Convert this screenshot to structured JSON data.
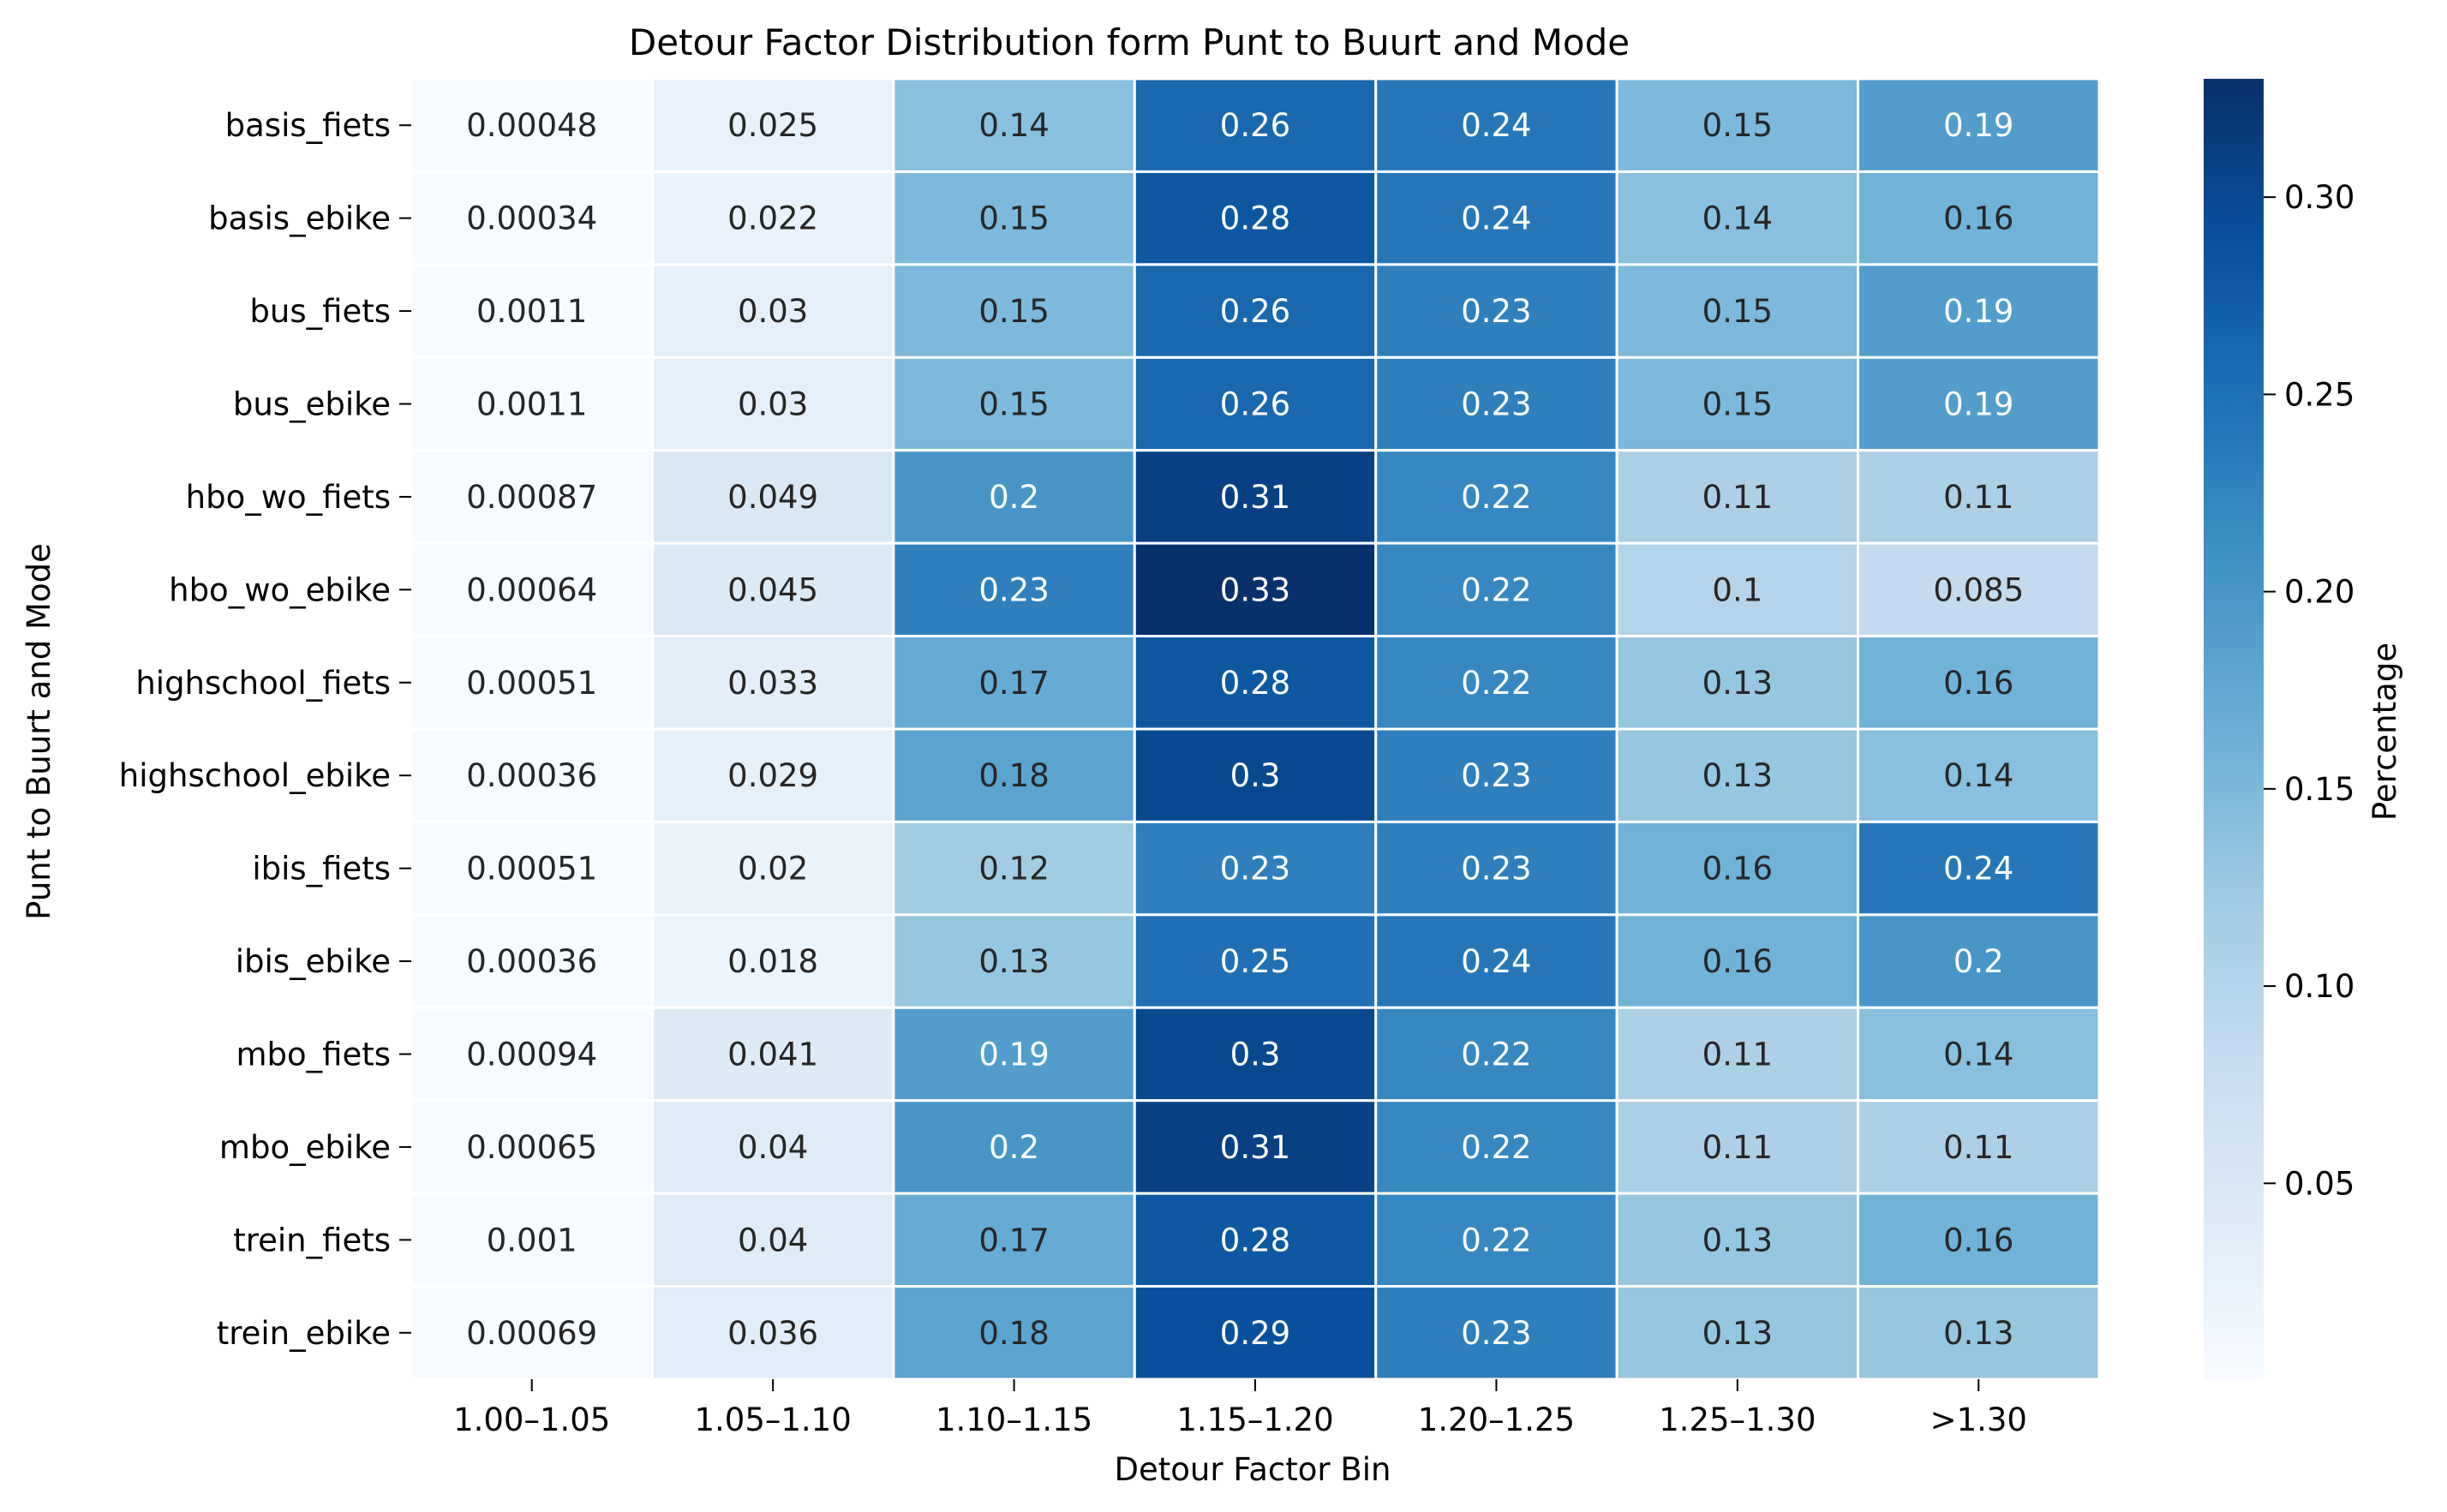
{
  "chart_data": {
    "type": "heatmap",
    "title": "Detour Factor Distribution form Punt to Buurt and Mode",
    "xlabel": "Detour Factor Bin",
    "ylabel": "Punt to Buurt and Mode",
    "colorbar_label": "Percentage",
    "colormap": "Blues",
    "color_range": [
      0.00034,
      0.33
    ],
    "colorbar_ticks": [
      "0.05",
      "0.10",
      "0.15",
      "0.20",
      "0.25",
      "0.30"
    ],
    "x_categories": [
      "1.00–1.05",
      "1.05–1.10",
      "1.10–1.15",
      "1.15–1.20",
      "1.20–1.25",
      "1.25–1.30",
      ">1.30"
    ],
    "y_categories": [
      "basis_fiets",
      "basis_ebike",
      "bus_fiets",
      "bus_ebike",
      "hbo_wo_fiets",
      "hbo_wo_ebike",
      "highschool_fiets",
      "highschool_ebike",
      "ibis_fiets",
      "ibis_ebike",
      "mbo_fiets",
      "mbo_ebike",
      "trein_fiets",
      "trein_ebike"
    ],
    "values": [
      [
        0.00048,
        0.025,
        0.14,
        0.26,
        0.24,
        0.15,
        0.19
      ],
      [
        0.00034,
        0.022,
        0.15,
        0.28,
        0.24,
        0.14,
        0.16
      ],
      [
        0.0011,
        0.03,
        0.15,
        0.26,
        0.23,
        0.15,
        0.19
      ],
      [
        0.0011,
        0.03,
        0.15,
        0.26,
        0.23,
        0.15,
        0.19
      ],
      [
        0.00087,
        0.049,
        0.2,
        0.31,
        0.22,
        0.11,
        0.11
      ],
      [
        0.00064,
        0.045,
        0.23,
        0.33,
        0.22,
        0.1,
        0.085
      ],
      [
        0.00051,
        0.033,
        0.17,
        0.28,
        0.22,
        0.13,
        0.16
      ],
      [
        0.00036,
        0.029,
        0.18,
        0.3,
        0.23,
        0.13,
        0.14
      ],
      [
        0.00051,
        0.02,
        0.12,
        0.23,
        0.23,
        0.16,
        0.24
      ],
      [
        0.00036,
        0.018,
        0.13,
        0.25,
        0.24,
        0.16,
        0.2
      ],
      [
        0.00094,
        0.041,
        0.19,
        0.3,
        0.22,
        0.11,
        0.14
      ],
      [
        0.00065,
        0.04,
        0.2,
        0.31,
        0.22,
        0.11,
        0.11
      ],
      [
        0.001,
        0.04,
        0.17,
        0.28,
        0.22,
        0.13,
        0.16
      ],
      [
        0.00069,
        0.036,
        0.18,
        0.29,
        0.23,
        0.13,
        0.13
      ]
    ],
    "labels": [
      [
        "0.00048",
        "0.025",
        "0.14",
        "0.26",
        "0.24",
        "0.15",
        "0.19"
      ],
      [
        "0.00034",
        "0.022",
        "0.15",
        "0.28",
        "0.24",
        "0.14",
        "0.16"
      ],
      [
        "0.0011",
        "0.03",
        "0.15",
        "0.26",
        "0.23",
        "0.15",
        "0.19"
      ],
      [
        "0.0011",
        "0.03",
        "0.15",
        "0.26",
        "0.23",
        "0.15",
        "0.19"
      ],
      [
        "0.00087",
        "0.049",
        "0.2",
        "0.31",
        "0.22",
        "0.11",
        "0.11"
      ],
      [
        "0.00064",
        "0.045",
        "0.23",
        "0.33",
        "0.22",
        "0.1",
        "0.085"
      ],
      [
        "0.00051",
        "0.033",
        "0.17",
        "0.28",
        "0.22",
        "0.13",
        "0.16"
      ],
      [
        "0.00036",
        "0.029",
        "0.18",
        "0.3",
        "0.23",
        "0.13",
        "0.14"
      ],
      [
        "0.00051",
        "0.02",
        "0.12",
        "0.23",
        "0.23",
        "0.16",
        "0.24"
      ],
      [
        "0.00036",
        "0.018",
        "0.13",
        "0.25",
        "0.24",
        "0.16",
        "0.2"
      ],
      [
        "0.00094",
        "0.041",
        "0.19",
        "0.3",
        "0.22",
        "0.11",
        "0.14"
      ],
      [
        "0.00065",
        "0.04",
        "0.2",
        "0.31",
        "0.22",
        "0.11",
        "0.11"
      ],
      [
        "0.001",
        "0.04",
        "0.17",
        "0.28",
        "0.22",
        "0.13",
        "0.16"
      ],
      [
        "0.00069",
        "0.036",
        "0.18",
        "0.29",
        "0.23",
        "0.13",
        "0.13"
      ]
    ]
  }
}
